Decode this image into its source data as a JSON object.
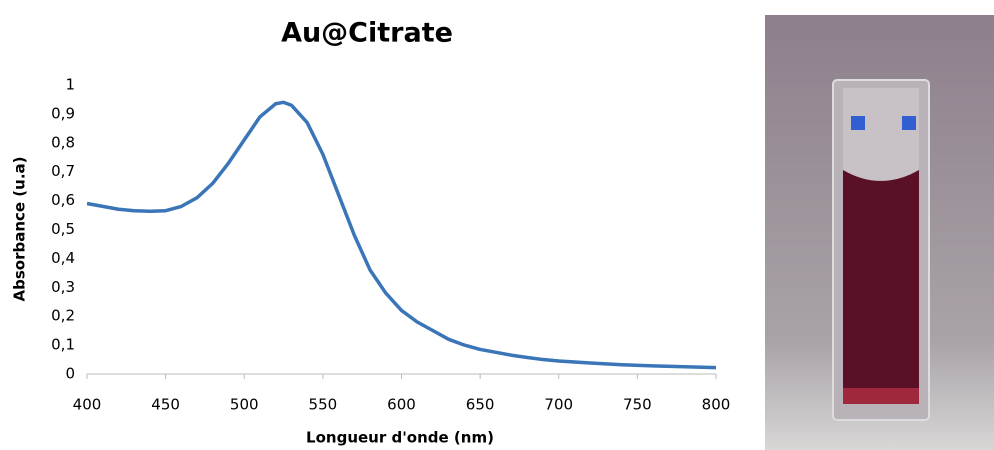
{
  "chart_data": {
    "type": "line",
    "title": "Au@Citrate",
    "x_label": "Longueur d'onde (nm)",
    "y_label": "Absorbance (u.a)",
    "x": [
      400,
      410,
      420,
      430,
      440,
      450,
      460,
      470,
      480,
      490,
      500,
      510,
      520,
      525,
      530,
      540,
      550,
      560,
      570,
      580,
      590,
      600,
      610,
      620,
      630,
      640,
      650,
      660,
      670,
      680,
      690,
      700,
      720,
      740,
      760,
      780,
      800
    ],
    "series": [
      {
        "name": "Au@Citrate",
        "color": "#3a75b8",
        "values": [
          0.59,
          0.58,
          0.57,
          0.565,
          0.563,
          0.565,
          0.58,
          0.61,
          0.66,
          0.73,
          0.81,
          0.89,
          0.935,
          0.94,
          0.93,
          0.87,
          0.76,
          0.62,
          0.48,
          0.36,
          0.28,
          0.22,
          0.18,
          0.15,
          0.12,
          0.1,
          0.085,
          0.075,
          0.065,
          0.057,
          0.05,
          0.045,
          0.038,
          0.032,
          0.028,
          0.025,
          0.022
        ]
      }
    ],
    "xlim": [
      400,
      800
    ],
    "xticks": [
      400,
      450,
      500,
      550,
      600,
      650,
      700,
      750,
      800
    ],
    "ylim": [
      0,
      1
    ],
    "yticks": [
      0,
      {
        "value": 0.1,
        "label": "0,1"
      },
      {
        "value": 0.2,
        "label": "0,2"
      },
      {
        "value": 0.3,
        "label": "0,3"
      },
      {
        "value": 0.4,
        "label": "0,4"
      },
      {
        "value": 0.5,
        "label": "0,5"
      },
      {
        "value": 0.6,
        "label": "0,6"
      },
      {
        "value": 0.7,
        "label": "0,7"
      },
      {
        "value": 0.8,
        "label": "0,8"
      },
      {
        "value": 0.9,
        "label": "0,9"
      },
      1
    ],
    "grid": false
  }
}
